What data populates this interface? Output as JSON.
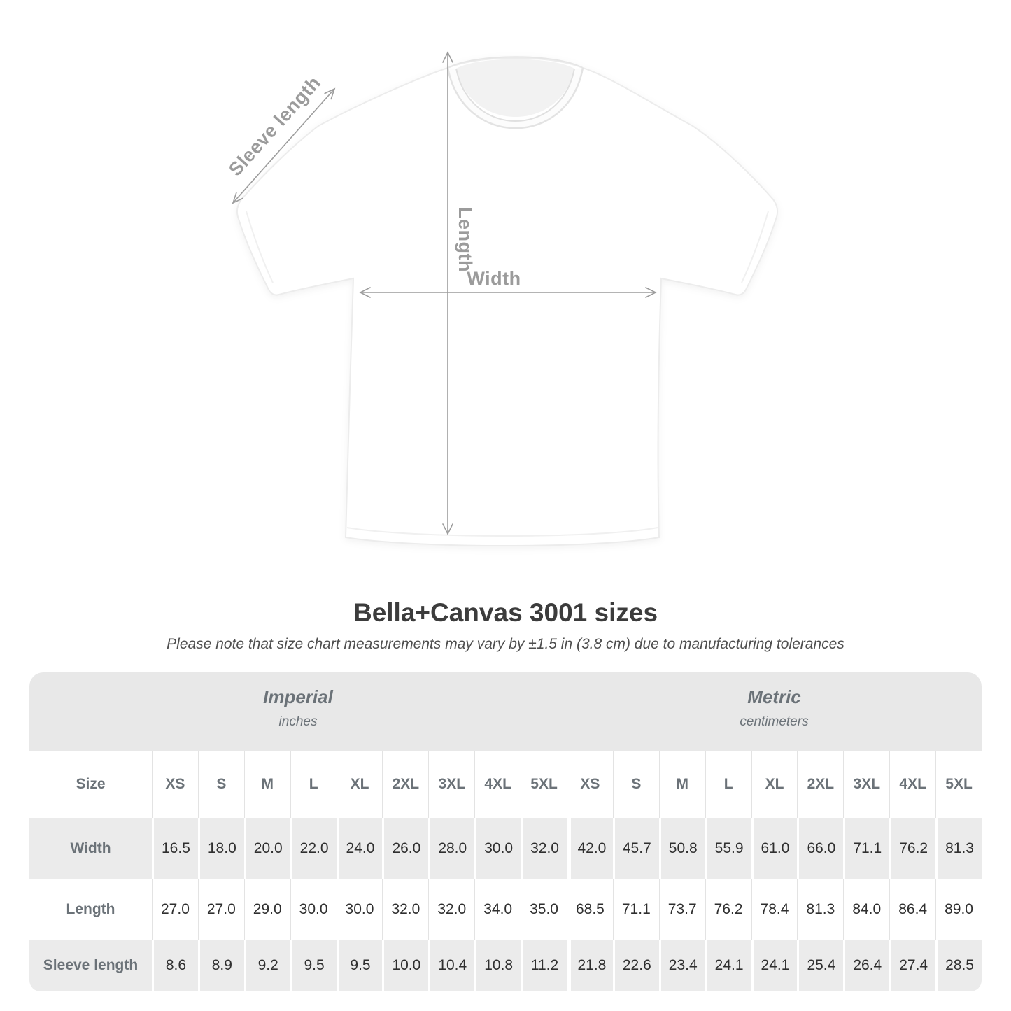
{
  "diagram": {
    "labels": {
      "sleeve": "Sleeve length",
      "length": "Length",
      "width": "Width"
    }
  },
  "title": "Bella+Canvas 3001 sizes",
  "subtitle": "Please note that size chart measurements may vary by ±1.5 in (3.8 cm) due to manufacturing tolerances",
  "table": {
    "unit_groups": [
      {
        "name": "Imperial",
        "unit": "inches"
      },
      {
        "name": "Metric",
        "unit": "centimeters"
      }
    ],
    "size_header": {
      "label": "Size",
      "imperial": [
        "XS",
        "S",
        "M",
        "L",
        "XL",
        "2XL",
        "3XL",
        "4XL",
        "5XL"
      ],
      "metric": [
        "XS",
        "S",
        "M",
        "L",
        "XL",
        "2XL",
        "3XL",
        "4XL",
        "5XL"
      ]
    },
    "rows": [
      {
        "label": "Width",
        "imperial": [
          "16.5",
          "18.0",
          "20.0",
          "22.0",
          "24.0",
          "26.0",
          "28.0",
          "30.0",
          "32.0"
        ],
        "metric": [
          "42.0",
          "45.7",
          "50.8",
          "55.9",
          "61.0",
          "66.0",
          "71.1",
          "76.2",
          "81.3"
        ]
      },
      {
        "label": "Length",
        "imperial": [
          "27.0",
          "27.0",
          "29.0",
          "30.0",
          "30.0",
          "32.0",
          "32.0",
          "34.0",
          "35.0"
        ],
        "metric": [
          "68.5",
          "71.1",
          "73.7",
          "76.2",
          "78.4",
          "81.3",
          "84.0",
          "86.4",
          "89.0"
        ]
      },
      {
        "label": "Sleeve length",
        "imperial": [
          "8.6",
          "8.9",
          "9.2",
          "9.5",
          "9.5",
          "10.0",
          "10.4",
          "10.8",
          "11.2"
        ],
        "metric": [
          "21.8",
          "22.6",
          "23.4",
          "24.1",
          "24.1",
          "25.4",
          "26.4",
          "27.4",
          "28.5"
        ]
      }
    ]
  },
  "chart_data": {
    "type": "table",
    "title": "Bella+Canvas 3001 sizes",
    "note": "Please note that size chart measurements may vary by ±1.5 in (3.8 cm) due to manufacturing tolerances",
    "column_groups": [
      "Imperial (inches)",
      "Metric (centimeters)"
    ],
    "columns": [
      "XS",
      "S",
      "M",
      "L",
      "XL",
      "2XL",
      "3XL",
      "4XL",
      "5XL",
      "XS",
      "S",
      "M",
      "L",
      "XL",
      "2XL",
      "3XL",
      "4XL",
      "5XL"
    ],
    "rows": [
      {
        "label": "Width",
        "values": [
          16.5,
          18.0,
          20.0,
          22.0,
          24.0,
          26.0,
          28.0,
          30.0,
          32.0,
          42.0,
          45.7,
          50.8,
          55.9,
          61.0,
          66.0,
          71.1,
          76.2,
          81.3
        ]
      },
      {
        "label": "Length",
        "values": [
          27.0,
          27.0,
          29.0,
          30.0,
          30.0,
          32.0,
          32.0,
          34.0,
          35.0,
          68.5,
          71.1,
          73.7,
          76.2,
          78.4,
          81.3,
          84.0,
          86.4,
          89.0
        ]
      },
      {
        "label": "Sleeve length",
        "values": [
          8.6,
          8.9,
          9.2,
          9.5,
          9.5,
          10.0,
          10.4,
          10.8,
          11.2,
          21.8,
          22.6,
          23.4,
          24.1,
          24.1,
          25.4,
          26.4,
          27.4,
          28.5
        ]
      }
    ]
  },
  "colors": {
    "band_bg": "#e8e8e8",
    "stripe_bg": "#ebebeb",
    "header_text": "#6b7278",
    "value_text": "#2f2f2f",
    "title_text": "#3c3c3c",
    "measure_gray": "#9b9b9b"
  }
}
